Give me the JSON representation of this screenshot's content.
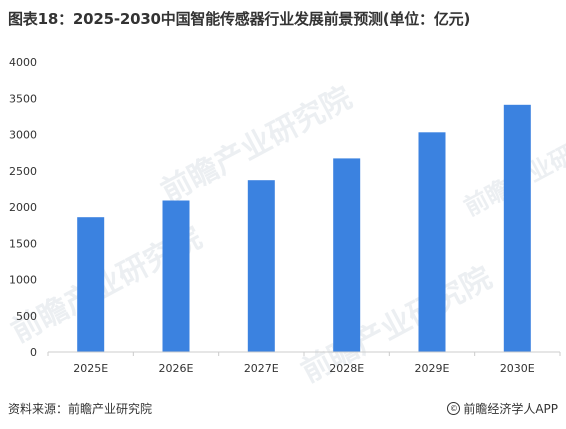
{
  "title": "图表18：2025-2030中国智能传感器行业发展前景预测(单位：亿元)",
  "source": "资料来源：前瞻产业研究院",
  "brand": "前瞻经济学人APP",
  "watermark": "前瞻产业研究院",
  "colors": {
    "bar": "#3b82e0",
    "axis": "#cccccc",
    "text": "#333333"
  },
  "chart_data": {
    "type": "bar",
    "categories": [
      "2025E",
      "2026E",
      "2027E",
      "2028E",
      "2029E",
      "2030E"
    ],
    "values": [
      1860,
      2090,
      2370,
      2670,
      3030,
      3410
    ],
    "title": "图表18：2025-2030中国智能传感器行业发展前景预测(单位：亿元)",
    "xlabel": "",
    "ylabel": "",
    "ylim": [
      0,
      4000
    ],
    "yticks": [
      0,
      500,
      1000,
      1500,
      2000,
      2500,
      3000,
      3500,
      4000
    ],
    "grid": false,
    "legend": "none"
  }
}
